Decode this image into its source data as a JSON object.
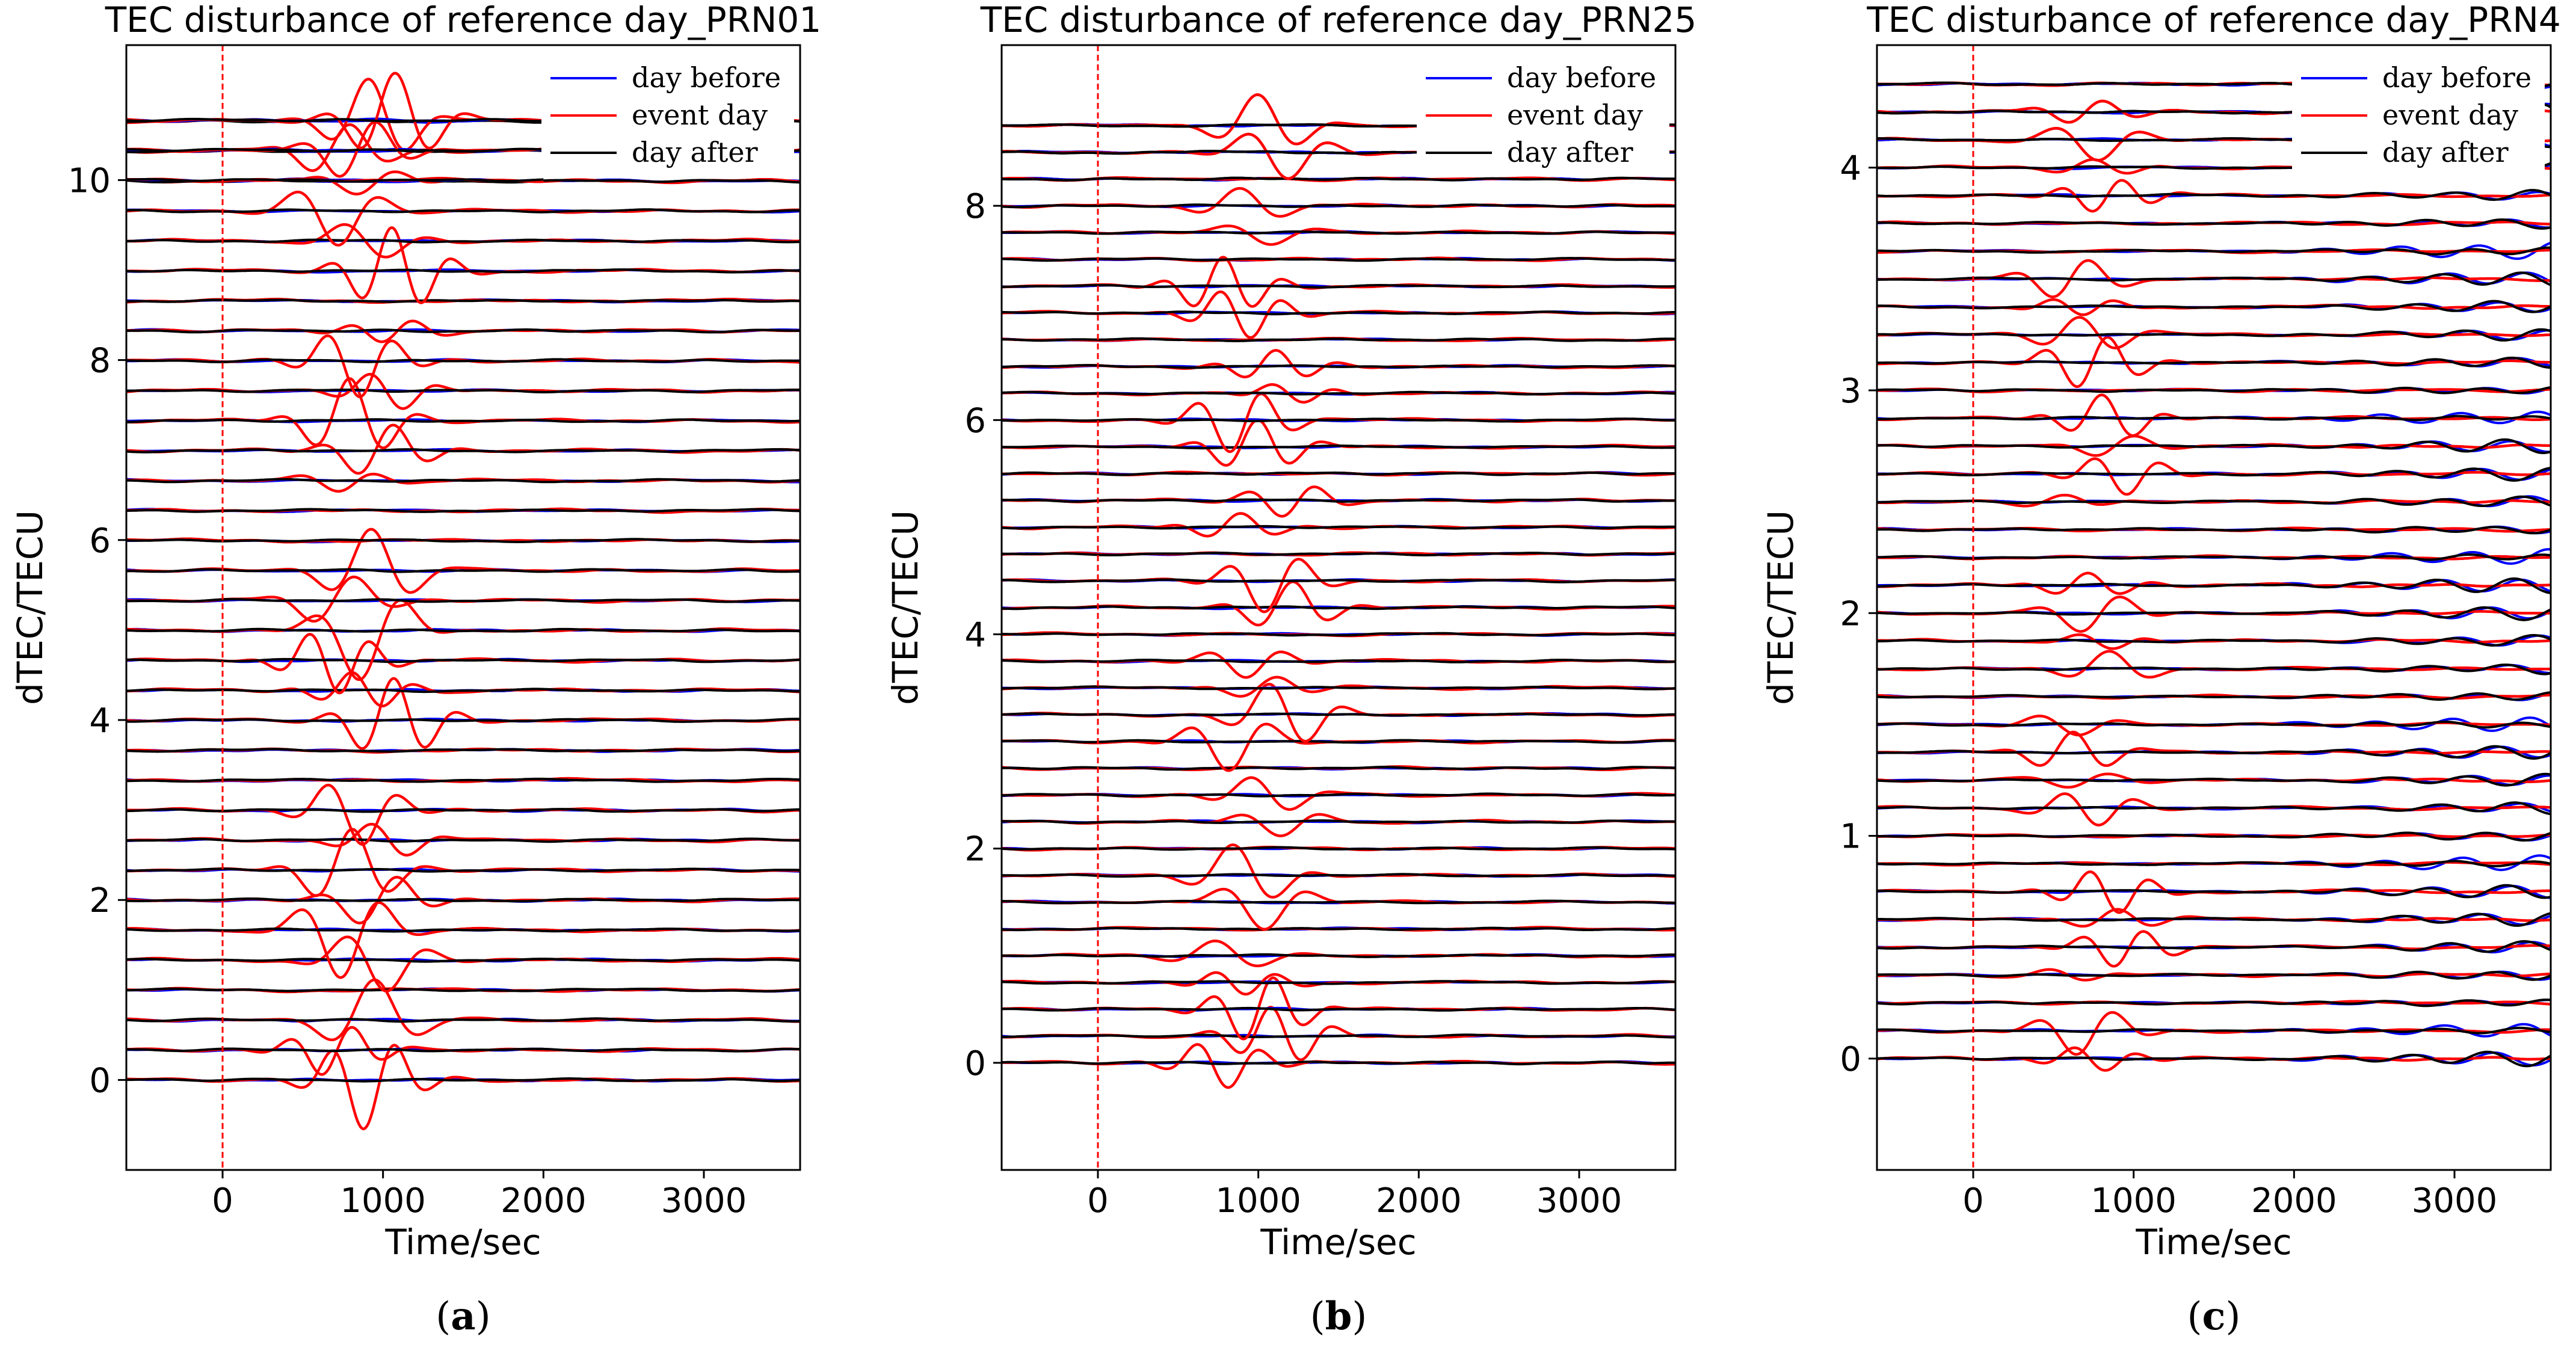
{
  "figure": {
    "panels": [
      {
        "label_open": "(",
        "label_letter": "a",
        "label_close": ")"
      },
      {
        "label_open": "(",
        "label_letter": "b",
        "label_close": ")"
      },
      {
        "label_open": "(",
        "label_letter": "c",
        "label_close": ")"
      }
    ]
  },
  "colors": {
    "day_before": "#0000ff",
    "event_day": "#ff0000",
    "day_after": "#000000",
    "onset_line": "#ff0000"
  },
  "chart_data": [
    {
      "type": "line",
      "title": "TEC disturbance of reference day_PRN01",
      "xlabel": "Time/sec",
      "ylabel": "dTEC/TECU",
      "xlim": [
        -600,
        3600
      ],
      "ylim": [
        -1.0,
        11.5
      ],
      "xticks": [
        0,
        1000,
        2000,
        3000
      ],
      "yticks": [
        0,
        2,
        4,
        6,
        8,
        10
      ],
      "grid": false,
      "legend": {
        "position": "top-right",
        "entries": [
          "day before",
          "event day",
          "day after"
        ]
      },
      "onset_line_x": 0,
      "station_offsets": {
        "start": 0,
        "step": 0.333,
        "count": 33
      },
      "short_trace_offsets": [
        10,
        10.333,
        10.666
      ],
      "short_trace_end_x": 2000,
      "event_window": {
        "start": 600,
        "end": 1600,
        "peak_amplitude": 0.5
      }
    },
    {
      "type": "line",
      "title": "TEC disturbance of reference day_PRN25",
      "xlabel": "Time/sec",
      "ylabel": "dTEC/TECU",
      "xlim": [
        -600,
        3600
      ],
      "ylim": [
        -1.0,
        9.5
      ],
      "xticks": [
        0,
        1000,
        2000,
        3000
      ],
      "yticks": [
        0,
        2,
        4,
        6,
        8
      ],
      "grid": false,
      "legend": {
        "position": "top-right",
        "entries": [
          "day before",
          "event day",
          "day after"
        ]
      },
      "onset_line_x": 0,
      "station_offsets": {
        "start": 0,
        "step": 0.25,
        "count": 36
      },
      "short_trace_offsets": [
        8.25,
        8.5,
        8.75
      ],
      "short_trace_end_x": 2000,
      "event_window": {
        "start": 700,
        "end": 1800,
        "peak_amplitude": 0.4
      }
    },
    {
      "type": "line",
      "title": "TEC disturbance of reference day_PRN4",
      "xlabel": "Time/sec",
      "ylabel": "dTEC/TECU",
      "xlim": [
        -600,
        3600
      ],
      "ylim": [
        -0.5,
        4.55
      ],
      "xticks": [
        0,
        1000,
        2000,
        3000
      ],
      "yticks": [
        0,
        1,
        2,
        3,
        4
      ],
      "grid": false,
      "legend": {
        "position": "top-right",
        "entries": [
          "day before",
          "event day",
          "day after"
        ]
      },
      "onset_line_x": 0,
      "station_offsets": {
        "start": 0,
        "step": 0.125,
        "count": 36
      },
      "short_trace_offsets": [
        4.125,
        4.25,
        4.375
      ],
      "short_trace_end_x": 2000,
      "event_window": {
        "start": 500,
        "end": 1400,
        "peak_amplitude": 0.3
      }
    }
  ]
}
